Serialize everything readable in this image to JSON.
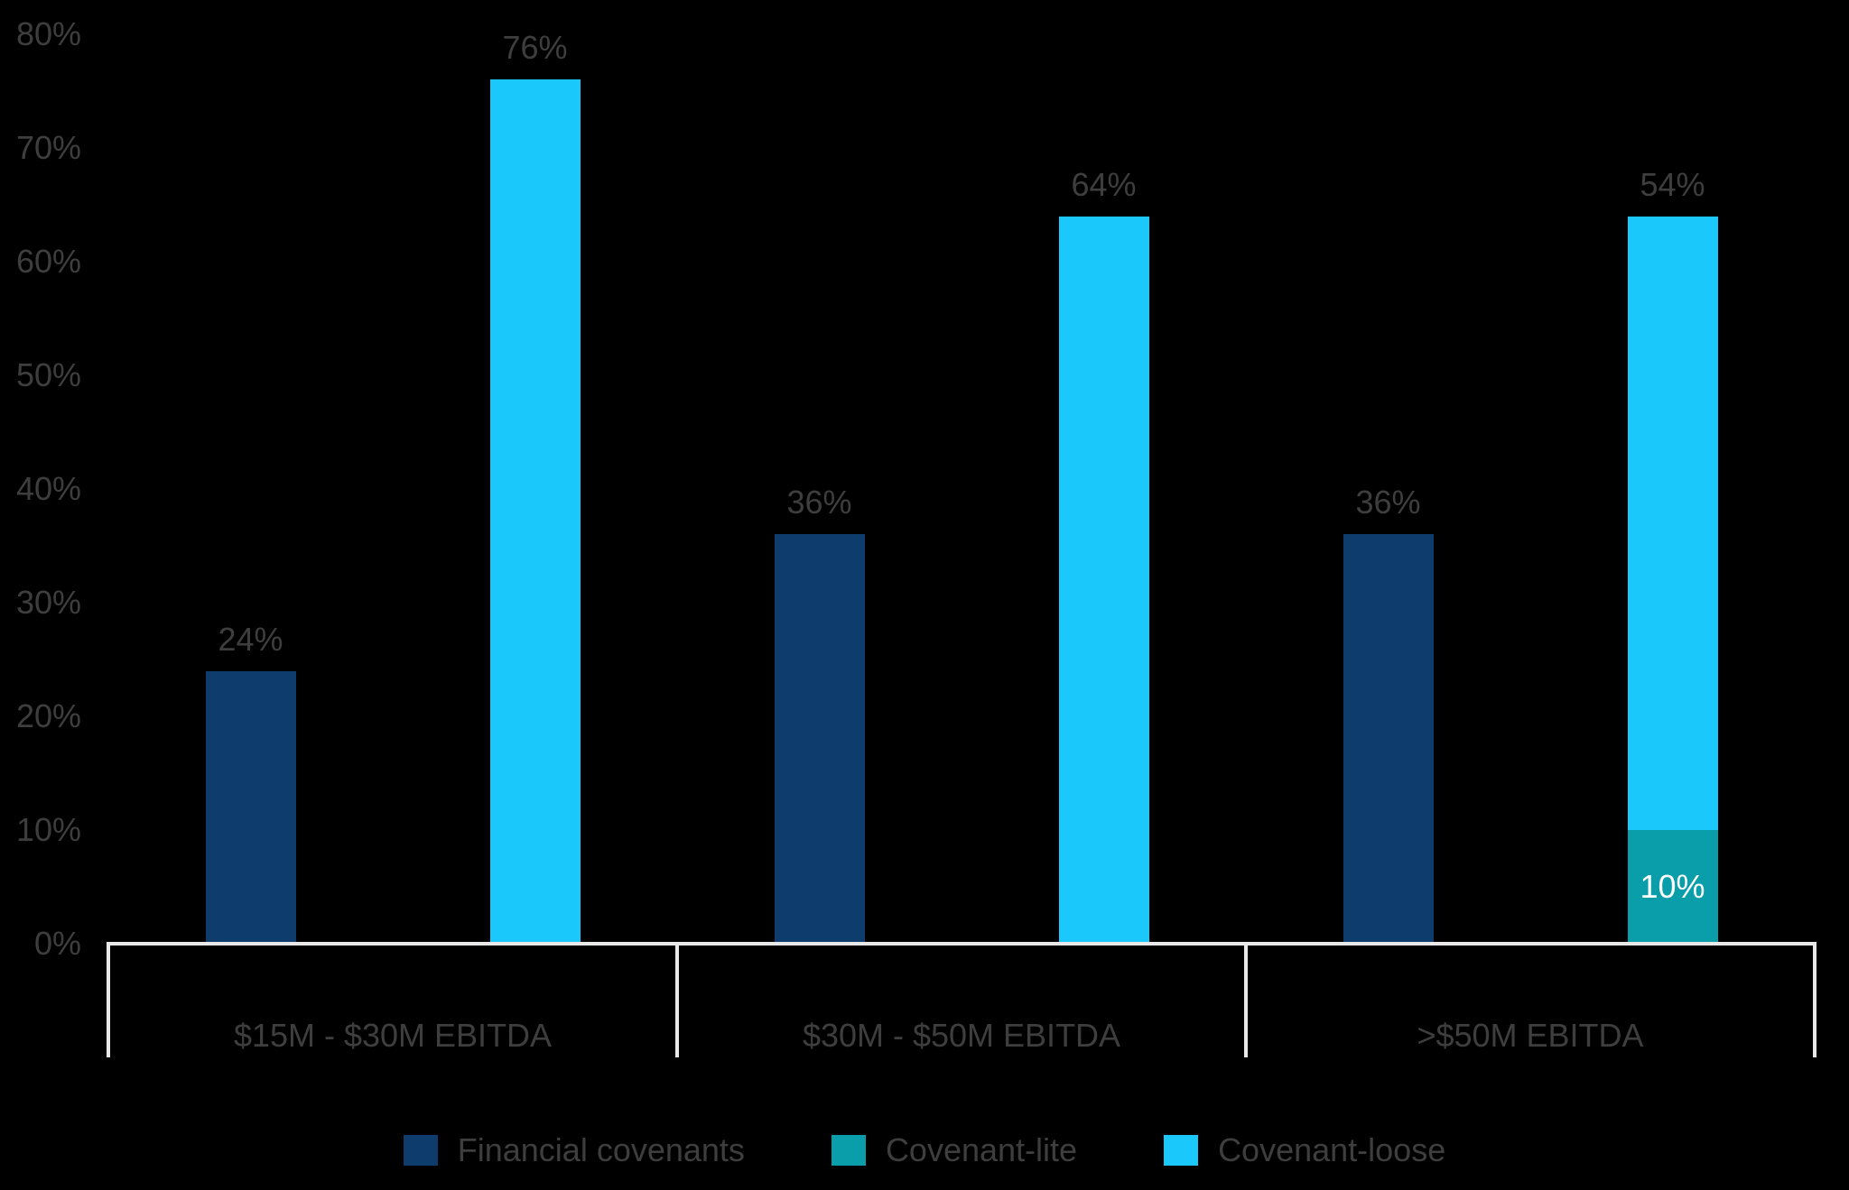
{
  "chart_data": {
    "type": "bar",
    "title": "",
    "xlabel": "",
    "ylabel": "",
    "categories": [
      "$15M - $30M EBITDA",
      "$30M - $50M EBITDA",
      ">$50M EBITDA"
    ],
    "series": [
      {
        "name": "Financial covenants",
        "color": "#0E3C6C",
        "values": [
          24,
          36,
          36
        ],
        "placement": "own-bar",
        "label_position": "above"
      },
      {
        "name": "Covenant-lite",
        "color": "#099EAA",
        "values": [
          0,
          0,
          10
        ],
        "placement": "stacked-bar",
        "label_position": "inside",
        "label_color": "#FFFFFF"
      },
      {
        "name": "Covenant-loose",
        "color": "#1AC8FB",
        "values": [
          76,
          64,
          54
        ],
        "placement": "stacked-bar",
        "label_position": "above"
      }
    ],
    "value_labels": {
      "financial_covenants": [
        "24%",
        "36%",
        "36%"
      ],
      "covenant_lite": [
        "",
        "",
        "10%"
      ],
      "covenant_loose": [
        "76%",
        "64%",
        "54%"
      ]
    },
    "ylim": [
      0,
      80
    ],
    "ytick_labels": [
      "0%",
      "10%",
      "20%",
      "30%",
      "40%",
      "50%",
      "60%",
      "70%",
      "80%"
    ],
    "grid": false,
    "legend_position": "bottom",
    "legend_entries": [
      "Financial covenants",
      "Covenant-lite",
      "Covenant-loose"
    ],
    "label_suffix": "%",
    "colors": {
      "background": "#000000",
      "text": "#3E3E3E",
      "axis_line": "#E8E8E8",
      "inside_label_text": "#FFFFFF"
    }
  }
}
